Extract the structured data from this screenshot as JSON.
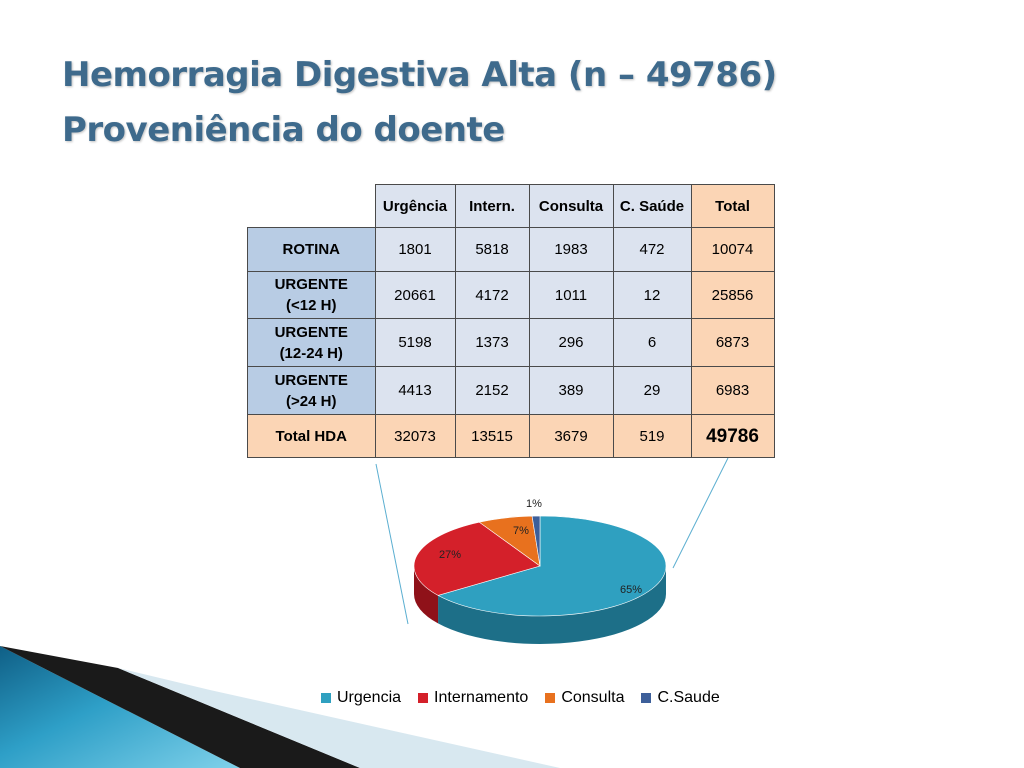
{
  "slide": {
    "title_line1": "Hemorragia Digestiva Alta (n – 49786)",
    "title_line2": "Proveniência do doente"
  },
  "table": {
    "headers": [
      "Urgência",
      "Intern.",
      "Consulta",
      "C. Saúde",
      "Total"
    ],
    "rows": [
      {
        "label_line1": "ROTINA",
        "label_line2": "",
        "values": [
          "1801",
          "5818",
          "1983",
          "472"
        ],
        "total": "10074"
      },
      {
        "label_line1": "URGENTE",
        "label_line2": "(<12 H)",
        "values": [
          "20661",
          "4172",
          "1011",
          "12"
        ],
        "total": "25856"
      },
      {
        "label_line1": "URGENTE",
        "label_line2": "(12-24 H)",
        "values": [
          "5198",
          "1373",
          "296",
          "6"
        ],
        "total": "6873"
      },
      {
        "label_line1": "URGENTE",
        "label_line2": "(>24 H)",
        "values": [
          "4413",
          "2152",
          "389",
          "29"
        ],
        "total": "6983"
      }
    ],
    "total_row": {
      "label": "Total HDA",
      "values": [
        "32073",
        "13515",
        "3679",
        "519"
      ],
      "total": "49786"
    }
  },
  "chart_data": {
    "type": "pie",
    "categories": [
      "Urgencia",
      "Internamento",
      "Consulta",
      "C.Saude"
    ],
    "values": [
      65,
      27,
      7,
      1
    ],
    "labels": [
      "65%",
      "27%",
      "7%",
      "1%"
    ],
    "colors": [
      "#2fa0c0",
      "#d4202a",
      "#e8711e",
      "#3d5f9a"
    ],
    "dark_colors": [
      "#1d6f88",
      "#8f1119",
      "#a44c10",
      "#263f6a"
    ],
    "legend_position": "bottom"
  },
  "decor": {
    "accent": "#2a8fb8"
  }
}
